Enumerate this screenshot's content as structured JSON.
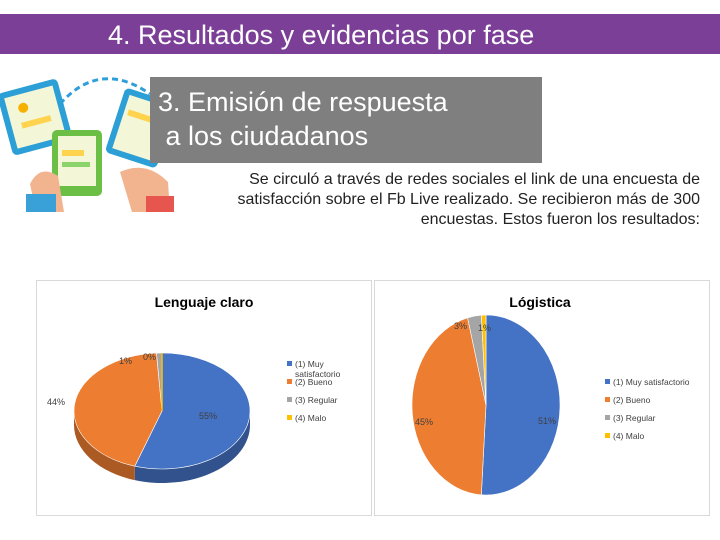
{
  "header": {
    "title": "4. Resultados y evidencias por fase"
  },
  "section": {
    "subtitle_line1": "3. Emisión de respuesta",
    "subtitle_line2": " a los ciudadanos"
  },
  "description": "Se circuló a través de redes sociales el link de una encuesta de satisfacción sobre el Fb Live realizado. Se recibieron más de 300 encuestas. Estos fueron los resultados:",
  "colors": {
    "title_bar": "#7b3f98",
    "subtitle_box": "#7f7f7f",
    "blue": "#4472c4",
    "orange": "#ed7d31",
    "gray": "#a5a5a5",
    "yellow": "#ffc000"
  },
  "illustration": {
    "icons": [
      "tablet-icon",
      "hands-icon",
      "chat-bubble-icon",
      "wifi-icon"
    ]
  },
  "chart_data": [
    {
      "type": "pie",
      "title": "Lenguaje claro",
      "categories": [
        "(1) Muy satisfactorio",
        "(2) Bueno",
        "(3) Regular",
        "(4) Malo"
      ],
      "values": [
        55,
        44,
        1,
        0
      ],
      "data_labels": [
        "55%",
        "44%",
        "1%",
        "0%"
      ],
      "legend": "right"
    },
    {
      "type": "pie",
      "title": "Lógistica",
      "categories": [
        "(1) Muy satisfactorio",
        "(2) Bueno",
        "(3) Regular",
        "(4) Malo"
      ],
      "values": [
        51,
        45,
        3,
        1
      ],
      "data_labels": [
        "51%",
        "45%",
        "3%",
        "1%"
      ],
      "legend": "right"
    }
  ]
}
